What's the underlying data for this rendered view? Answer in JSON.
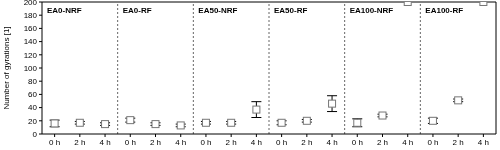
{
  "chart_data": {
    "type": "scatter",
    "y_label": "Number of gyrations [1]",
    "ylim": [
      0,
      200
    ],
    "yticks": [
      0,
      20,
      40,
      60,
      80,
      100,
      120,
      140,
      160,
      180,
      200
    ],
    "marker": "square",
    "color": "#000000",
    "panels": [
      {
        "title": "EA0-NRF",
        "categories": [
          "0 h",
          "2 h",
          "4 h"
        ],
        "values": [
          16,
          17,
          15
        ],
        "errors": [
          5,
          2,
          2
        ]
      },
      {
        "title": "EA0-RF",
        "categories": [
          "0 h",
          "2 h",
          "4 h"
        ],
        "values": [
          21,
          15,
          13
        ],
        "errors": [
          3,
          2,
          2
        ]
      },
      {
        "title": "EA50-NRF",
        "categories": [
          "0 h",
          "2 h",
          "4 h"
        ],
        "values": [
          17,
          17,
          37
        ],
        "errors": [
          2,
          2,
          12
        ]
      },
      {
        "title": "EA50-RF",
        "categories": [
          "0 h",
          "2 h",
          "4 h"
        ],
        "values": [
          17,
          20,
          46
        ],
        "errors": [
          3,
          2,
          12
        ]
      },
      {
        "title": "EA100-NRF",
        "categories": [
          "0 h",
          "2 h",
          "4 h"
        ],
        "values": [
          17,
          28,
          200
        ],
        "errors": [
          6,
          2,
          null
        ]
      },
      {
        "title": "EA100-RF",
        "categories": [
          "0 h",
          "2 h",
          "4 h"
        ],
        "values": [
          20,
          51,
          200
        ],
        "errors": [
          4,
          2,
          null
        ]
      }
    ]
  }
}
